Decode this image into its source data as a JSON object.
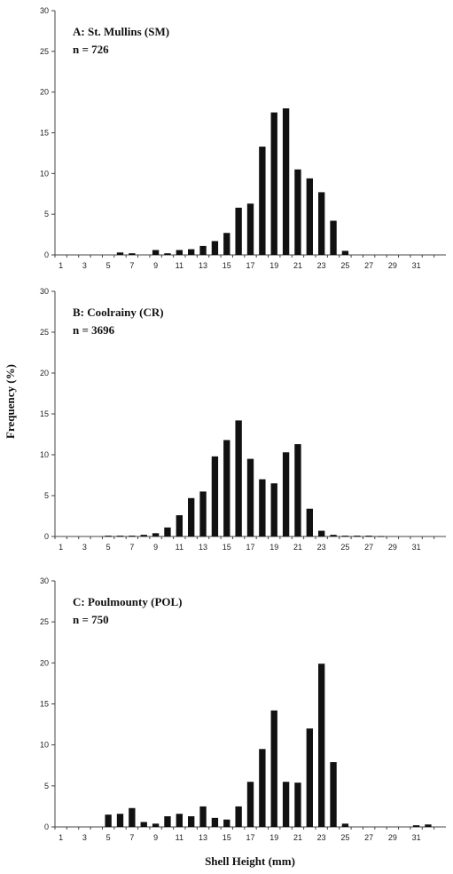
{
  "figure": {
    "ylabel": "Frequency (%)",
    "xlabel": "Shell Height (mm)"
  },
  "chart_data": [
    {
      "type": "bar",
      "title": "A: St. Mullins (SM)",
      "subtitle": "n = 726",
      "categories": [
        1,
        2,
        3,
        4,
        5,
        6,
        7,
        8,
        9,
        10,
        11,
        12,
        13,
        14,
        15,
        16,
        17,
        18,
        19,
        20,
        21,
        22,
        23,
        24,
        25,
        26,
        27,
        28,
        29,
        30,
        31,
        32,
        33
      ],
      "values": [
        0,
        0,
        0,
        0,
        0,
        0.3,
        0.2,
        0,
        0.6,
        0.2,
        0.6,
        0.7,
        1.1,
        1.7,
        2.7,
        5.8,
        6.3,
        13.3,
        17.5,
        18.0,
        10.5,
        9.4,
        7.7,
        4.2,
        0.5,
        0,
        0,
        0,
        0,
        0,
        0,
        0,
        0
      ],
      "xticks": [
        1,
        3,
        5,
        7,
        9,
        11,
        13,
        15,
        17,
        19,
        21,
        23,
        25,
        27,
        29,
        31
      ],
      "yticks": [
        0,
        5,
        10,
        15,
        20,
        25,
        30
      ],
      "ylim": [
        0,
        30
      ]
    },
    {
      "type": "bar",
      "title": "B: Coolrainy (CR)",
      "subtitle": "n = 3696",
      "categories": [
        1,
        2,
        3,
        4,
        5,
        6,
        7,
        8,
        9,
        10,
        11,
        12,
        13,
        14,
        15,
        16,
        17,
        18,
        19,
        20,
        21,
        22,
        23,
        24,
        25,
        26,
        27,
        28,
        29,
        30,
        31,
        32,
        33
      ],
      "values": [
        0,
        0,
        0,
        0,
        0.1,
        0.1,
        0.1,
        0.2,
        0.4,
        1.1,
        2.6,
        4.7,
        5.5,
        9.8,
        11.8,
        14.2,
        9.5,
        7.0,
        6.5,
        10.3,
        11.3,
        3.4,
        0.7,
        0.2,
        0.1,
        0.1,
        0.1,
        0.05,
        0,
        0,
        0,
        0,
        0
      ],
      "xticks": [
        1,
        3,
        5,
        7,
        9,
        11,
        13,
        15,
        17,
        19,
        21,
        23,
        25,
        27,
        29,
        31
      ],
      "yticks": [
        0,
        5,
        10,
        15,
        20,
        25,
        30
      ],
      "ylim": [
        0,
        30
      ]
    },
    {
      "type": "bar",
      "title": "C: Poulmounty (POL)",
      "subtitle": "n = 750",
      "categories": [
        1,
        2,
        3,
        4,
        5,
        6,
        7,
        8,
        9,
        10,
        11,
        12,
        13,
        14,
        15,
        16,
        17,
        18,
        19,
        20,
        21,
        22,
        23,
        24,
        25,
        26,
        27,
        28,
        29,
        30,
        31,
        32,
        33
      ],
      "values": [
        0,
        0,
        0,
        0,
        1.5,
        1.6,
        2.3,
        0.6,
        0.4,
        1.3,
        1.6,
        1.3,
        2.5,
        1.1,
        0.9,
        2.5,
        5.5,
        9.5,
        14.2,
        5.5,
        5.4,
        12.0,
        19.9,
        7.9,
        0.4,
        0,
        0,
        0,
        0,
        0,
        0.2,
        0.3,
        0
      ],
      "xticks": [
        1,
        3,
        5,
        7,
        9,
        11,
        13,
        15,
        17,
        19,
        21,
        23,
        25,
        27,
        29,
        31
      ],
      "yticks": [
        0,
        5,
        10,
        15,
        20,
        25,
        30
      ],
      "ylim": [
        0,
        30
      ]
    }
  ]
}
